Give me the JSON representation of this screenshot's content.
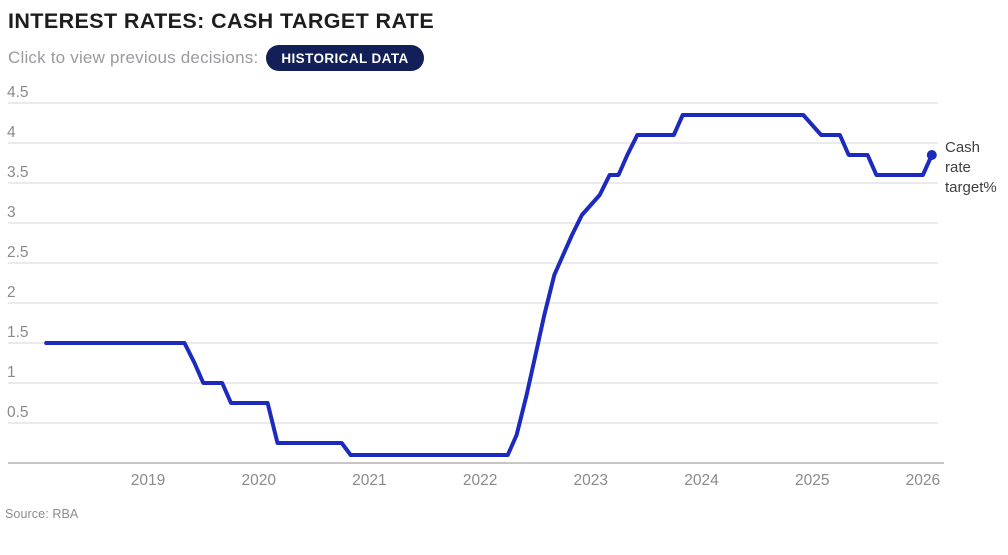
{
  "header": {
    "title": "INTEREST RATES: CASH TARGET RATE",
    "subtitle": "Click to view previous decisions:",
    "button_label": "HISTORICAL DATA"
  },
  "chart_data": {
    "type": "line",
    "title": "INTEREST RATES: CASH TARGET RATE",
    "xlabel": "",
    "ylabel": "",
    "ylim": [
      0,
      4.5
    ],
    "grid": true,
    "legend_position": "right-end-of-line",
    "x_ticks": [
      2019,
      2020,
      2021,
      2022,
      2023,
      2024,
      2025,
      2026
    ],
    "y_ticks": [
      0.5,
      1,
      1.5,
      2,
      2.5,
      3,
      3.5,
      4,
      4.5
    ],
    "series": [
      {
        "name": "Cash rate target%",
        "end_label": "Cash\nrate\ntarget%",
        "points": [
          [
            2018.08,
            1.5
          ],
          [
            2019.33,
            1.5
          ],
          [
            2019.42,
            1.25
          ],
          [
            2019.5,
            1.0
          ],
          [
            2019.67,
            1.0
          ],
          [
            2019.75,
            0.75
          ],
          [
            2020.08,
            0.75
          ],
          [
            2020.17,
            0.25
          ],
          [
            2020.75,
            0.25
          ],
          [
            2020.83,
            0.1
          ],
          [
            2022.25,
            0.1
          ],
          [
            2022.33,
            0.35
          ],
          [
            2022.42,
            0.85
          ],
          [
            2022.5,
            1.35
          ],
          [
            2022.58,
            1.85
          ],
          [
            2022.67,
            2.35
          ],
          [
            2022.75,
            2.6
          ],
          [
            2022.83,
            2.85
          ],
          [
            2022.92,
            3.1
          ],
          [
            2023.08,
            3.35
          ],
          [
            2023.17,
            3.6
          ],
          [
            2023.25,
            3.6
          ],
          [
            2023.33,
            3.85
          ],
          [
            2023.42,
            4.1
          ],
          [
            2023.75,
            4.1
          ],
          [
            2023.83,
            4.35
          ],
          [
            2024.92,
            4.35
          ],
          [
            2025.08,
            4.1
          ],
          [
            2025.25,
            4.1
          ],
          [
            2025.33,
            3.85
          ],
          [
            2025.5,
            3.85
          ],
          [
            2025.58,
            3.6
          ],
          [
            2026.0,
            3.6
          ],
          [
            2026.08,
            3.85
          ]
        ]
      }
    ],
    "colors": {
      "line": "#1c2bbd",
      "gridline": "#e4e4e4",
      "axis_line": "#b4b4b4",
      "tick_label": "#8a8a8a",
      "end_label_text": "#3f3f3f"
    }
  },
  "source": "Source: RBA"
}
